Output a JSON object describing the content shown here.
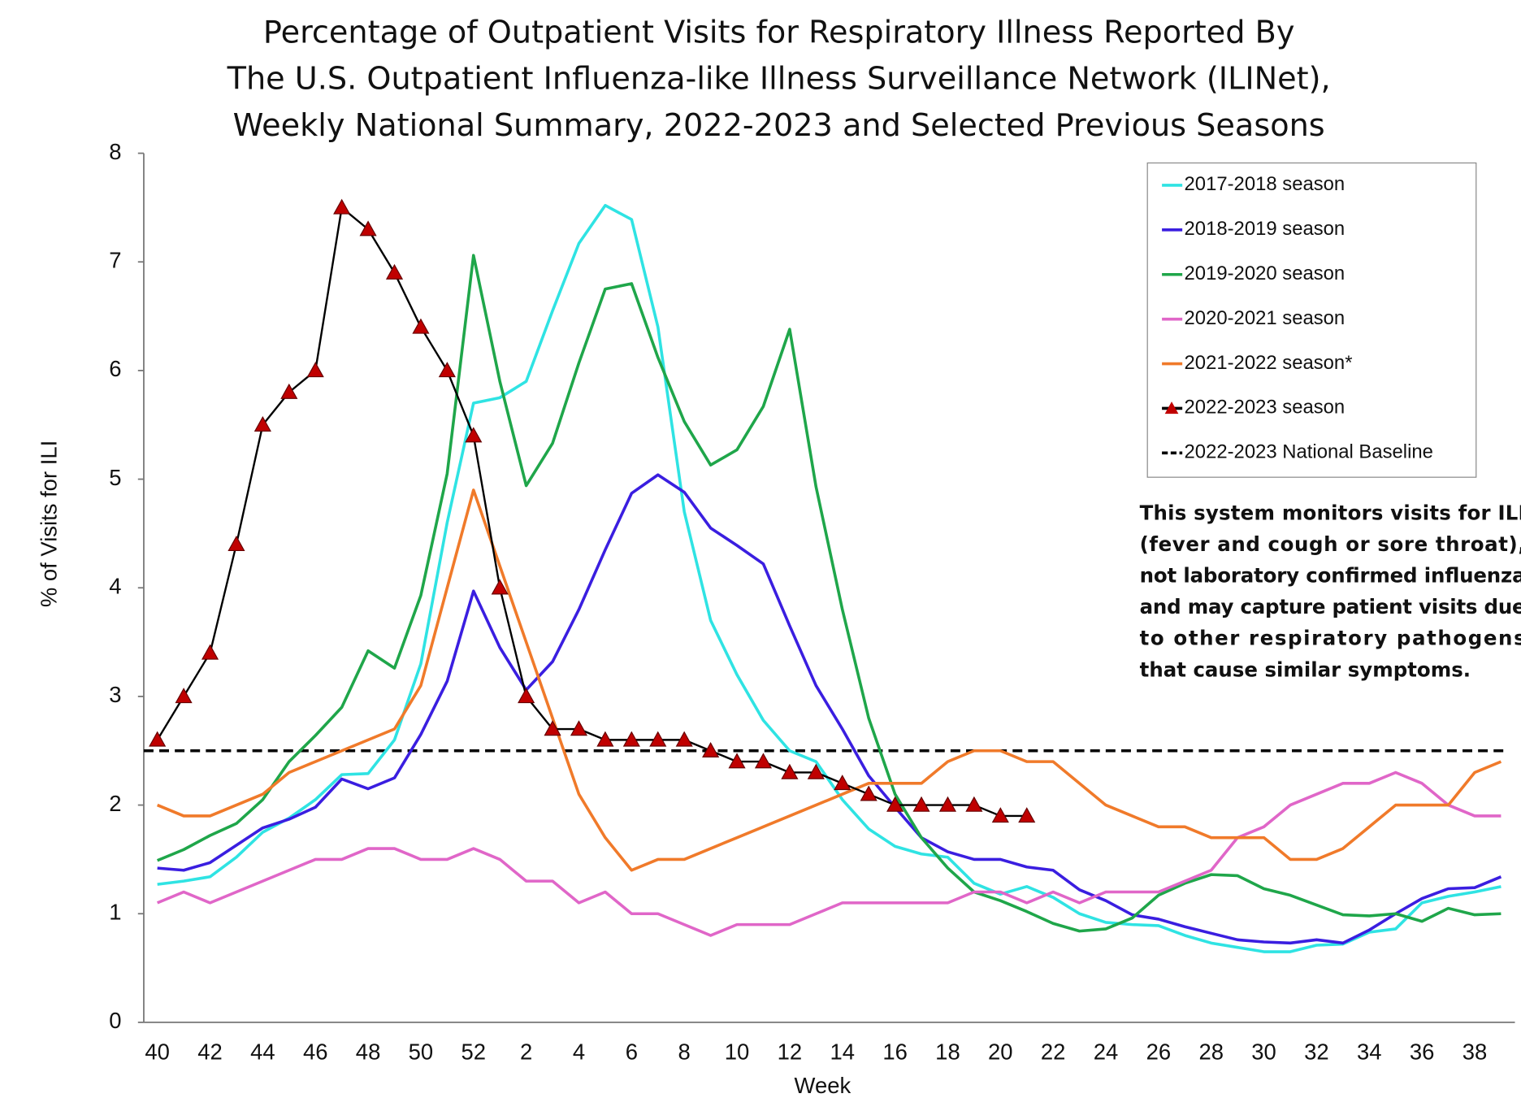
{
  "chart_data": {
    "type": "line",
    "title_lines": [
      "Percentage of Outpatient Visits for Respiratory Illness Reported By",
      "The U.S. Outpatient Influenza-like Illness Surveillance Network (ILINet),",
      "Weekly National Summary, 2022-2023 and Selected Previous Seasons"
    ],
    "x_label": "Week",
    "y_label": "% of Visits for ILI",
    "categories": [
      "40",
      null,
      "42",
      null,
      "44",
      null,
      "46",
      null,
      "48",
      null,
      "50",
      null,
      "52",
      null,
      "2",
      null,
      "4",
      null,
      "6",
      null,
      "8",
      null,
      "10",
      null,
      "12",
      null,
      "14",
      null,
      "16",
      null,
      "18",
      null,
      "20",
      null,
      "22",
      null,
      "24",
      null,
      "26",
      null,
      "28",
      null,
      "30",
      null,
      "32",
      null,
      "34",
      null,
      "36",
      null,
      "38",
      null
    ],
    "ylim": [
      0,
      8
    ],
    "yticks": [
      0,
      1,
      2,
      3,
      4,
      5,
      6,
      7,
      8
    ],
    "grid": false,
    "legend": "upper right",
    "series": [
      {
        "name": "2017-2018 season",
        "color": "#2fe3e3",
        "marker": null,
        "values": [
          1.27,
          1.3,
          1.34,
          1.52,
          1.75,
          1.88,
          2.05,
          2.28,
          2.29,
          2.6,
          3.3,
          4.6,
          5.7,
          5.75,
          5.9,
          6.55,
          7.17,
          7.52,
          7.39,
          6.4,
          4.7,
          3.7,
          3.2,
          2.78,
          2.5,
          2.4,
          2.05,
          1.78,
          1.62,
          1.55,
          1.52,
          1.28,
          1.18,
          1.25,
          1.15,
          1.0,
          0.92,
          0.9,
          0.89,
          0.8,
          0.73,
          0.69,
          0.65,
          0.65,
          0.71,
          0.72,
          0.83,
          0.86,
          1.1,
          1.16,
          1.2,
          1.25
        ]
      },
      {
        "name": "2018-2019 season",
        "color": "#3a1ee0",
        "marker": null,
        "values": [
          1.42,
          1.4,
          1.47,
          1.63,
          1.79,
          1.87,
          1.98,
          2.24,
          2.15,
          2.25,
          2.65,
          3.14,
          3.97,
          3.45,
          3.06,
          3.32,
          3.8,
          4.35,
          4.87,
          5.04,
          4.88,
          4.55,
          4.39,
          4.22,
          3.65,
          3.1,
          2.7,
          2.27,
          1.98,
          1.7,
          1.57,
          1.5,
          1.5,
          1.43,
          1.4,
          1.22,
          1.12,
          0.99,
          0.95,
          0.88,
          0.82,
          0.76,
          0.74,
          0.73,
          0.76,
          0.73,
          0.85,
          1.0,
          1.14,
          1.23,
          1.24,
          1.34
        ]
      },
      {
        "name": "2019-2020 season",
        "color": "#1fa64a",
        "marker": null,
        "values": [
          1.49,
          1.59,
          1.72,
          1.83,
          2.05,
          2.4,
          2.64,
          2.9,
          3.42,
          3.26,
          3.93,
          5.05,
          7.06,
          5.9,
          4.94,
          5.33,
          6.07,
          6.75,
          6.8,
          6.12,
          5.53,
          5.13,
          5.27,
          5.67,
          6.38,
          4.93,
          3.8,
          2.8,
          2.1,
          1.7,
          1.42,
          1.2,
          1.12,
          1.02,
          0.91,
          0.84,
          0.86,
          0.96,
          1.17,
          1.28,
          1.36,
          1.35,
          1.23,
          1.17,
          1.08,
          0.99,
          0.98,
          1.0,
          0.93,
          1.05,
          0.99,
          1.0
        ]
      },
      {
        "name": "2020-2021 season",
        "color": "#e066c8",
        "marker": null,
        "values": [
          1.1,
          1.2,
          1.1,
          1.2,
          1.3,
          1.4,
          1.5,
          1.5,
          1.6,
          1.6,
          1.5,
          1.5,
          1.6,
          1.5,
          1.3,
          1.3,
          1.1,
          1.2,
          1.0,
          1.0,
          0.9,
          0.8,
          0.9,
          0.9,
          0.9,
          1.0,
          1.1,
          1.1,
          1.1,
          1.1,
          1.1,
          1.2,
          1.2,
          1.1,
          1.2,
          1.1,
          1.2,
          1.2,
          1.2,
          1.3,
          1.4,
          1.7,
          1.8,
          2.0,
          2.1,
          2.2,
          2.2,
          2.3,
          2.2,
          2.0,
          1.9,
          1.9
        ]
      },
      {
        "name": "2021-2022 season*",
        "color": "#f07a2a",
        "marker": null,
        "values": [
          2.0,
          1.9,
          1.9,
          2.0,
          2.1,
          2.3,
          2.4,
          2.5,
          2.6,
          2.7,
          3.1,
          4.0,
          4.9,
          4.2,
          3.5,
          2.8,
          2.1,
          1.7,
          1.4,
          1.5,
          1.5,
          1.6,
          1.7,
          1.8,
          1.9,
          2.0,
          2.1,
          2.2,
          2.2,
          2.2,
          2.4,
          2.5,
          2.5,
          2.4,
          2.4,
          2.2,
          2.0,
          1.9,
          1.8,
          1.8,
          1.7,
          1.7,
          1.7,
          1.5,
          1.5,
          1.6,
          1.8,
          2.0,
          2.0,
          2.0,
          2.3,
          2.4
        ]
      },
      {
        "name": "2022-2023 season",
        "color": "#000000",
        "marker": "triangle",
        "marker_color": "#c00000",
        "values": [
          2.6,
          3.0,
          3.4,
          4.4,
          5.5,
          5.8,
          6.0,
          7.5,
          7.3,
          6.9,
          6.4,
          6.0,
          5.4,
          4.0,
          3.0,
          2.7,
          2.7,
          2.6,
          2.6,
          2.6,
          2.6,
          2.5,
          2.4,
          2.4,
          2.3,
          2.3,
          2.2,
          2.1,
          2.0,
          2.0,
          2.0,
          2.0,
          1.9,
          1.9,
          null,
          null,
          null,
          null,
          null,
          null,
          null,
          null,
          null,
          null,
          null,
          null,
          null,
          null,
          null,
          null,
          null,
          null
        ]
      }
    ],
    "baseline": {
      "name": "2022-2023 National Baseline",
      "value": 2.5,
      "color": "#000000"
    },
    "note_lines": [
      "This system monitors visits for ILI",
      "(fever and cough or sore throat),",
      "not laboratory confirmed influenza",
      "and may capture patient visits due",
      "to other respiratory pathogens",
      "that cause similar symptoms."
    ]
  }
}
